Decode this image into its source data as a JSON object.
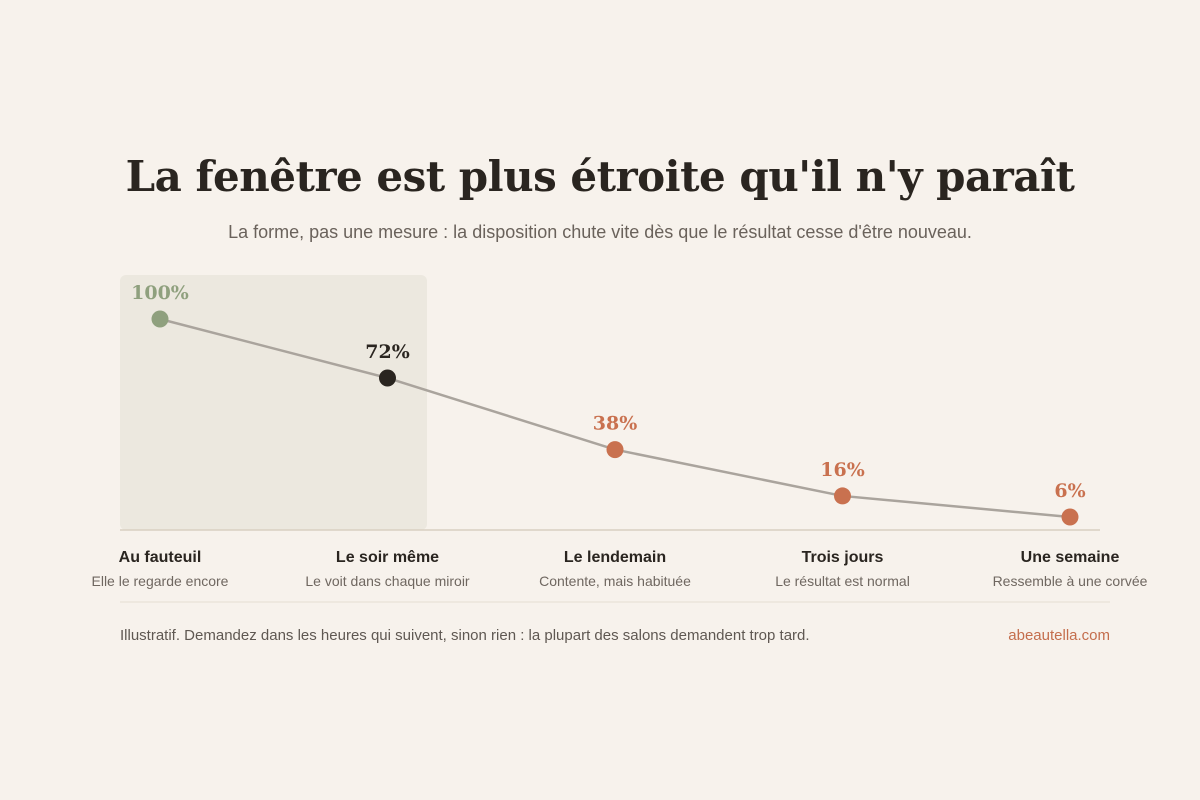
{
  "colors": {
    "background": "#f7f2ec",
    "highlight_band": "#ece8df",
    "line": "#aaa49d",
    "first_point": "#8fa07e",
    "current_point": "#2a2520",
    "later_points": "#c9714f",
    "source_link": "#c46e4d"
  },
  "chart_data": {
    "type": "line",
    "title": "La fenêtre est plus étroite qu'il n'y paraît",
    "subtitle": "La forme, pas une mesure : la disposition chute vite dès que le résultat cesse d'être nouveau.",
    "categories": [
      "Au fauteuil",
      "Le soir même",
      "Le lendemain",
      "Trois jours",
      "Une semaine"
    ],
    "captions": [
      "Elle le regarde encore",
      "Le voit dans chaque miroir",
      "Contente, mais habituée",
      "Le résultat est normal",
      "Ressemble à une corvée"
    ],
    "values": [
      100,
      72,
      38,
      16,
      6
    ],
    "value_labels": [
      "100%",
      "72%",
      "38%",
      "16%",
      "6%"
    ],
    "unit": "%",
    "ylim": [
      0,
      100
    ],
    "highlight": "first two points (Au fauteuil, Le soir même)",
    "grid": false,
    "legend": "none"
  },
  "footer": {
    "note": "Illustratif. Demandez dans les heures qui suivent, sinon rien : la plupart des salons demandent trop tard.",
    "source": "abeautella.com"
  }
}
